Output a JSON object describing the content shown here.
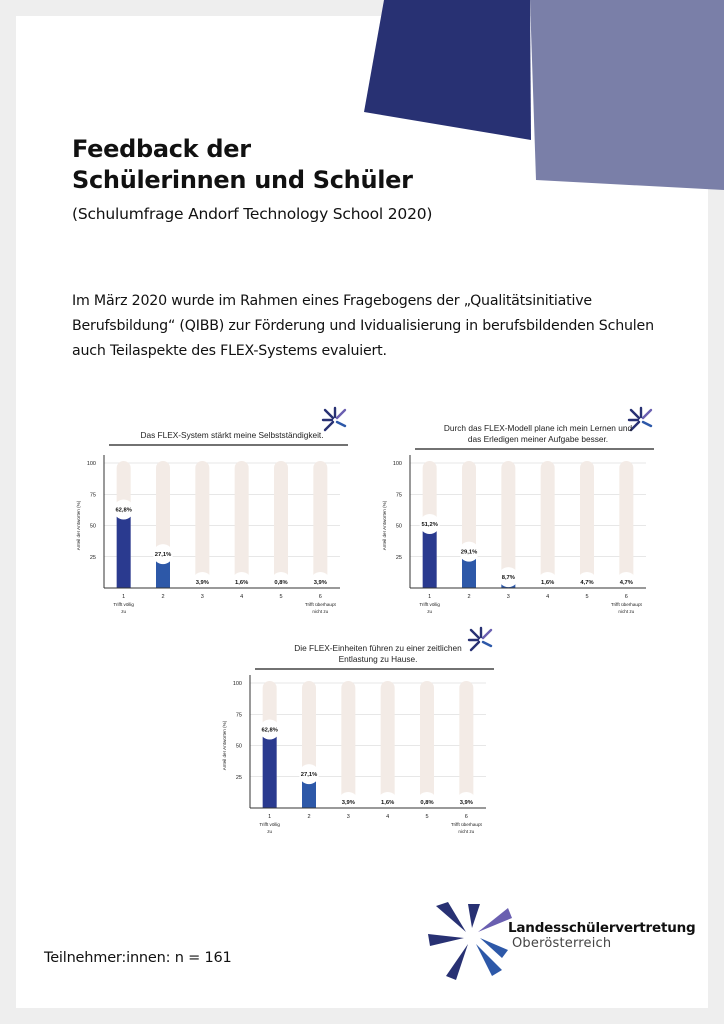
{
  "title_lines": [
    "Feedback der",
    "Schülerinnen und Schüler"
  ],
  "subtitle": "(Schulumfrage Andorf Technology School 2020)",
  "intro": "Im März 2020 wurde im Rahmen eines Fragebogens der „Qualitätsinitiative Berufsbildung“ (QIBB) zur Förderung und Ividualisierung  in berufsbildenden Schulen auch Teilaspekte des FLEX-Systems evaluiert.",
  "participants": "Teilnehmer:innen: n = 161",
  "logo": {
    "name": "Landesschülervertretung",
    "sub": "Oberösterreich"
  },
  "colors": {
    "bar_dark": "#2a3a8f",
    "bar_blue": "#2d58a8",
    "track": "#f3ebe6",
    "shape_dark": "#283173",
    "shape_light": "#7a7fa8"
  },
  "chart_data": [
    {
      "type": "bar",
      "title_lines": [
        "Das FLEX-System stärkt meine Selbstständigkeit."
      ],
      "categories": [
        "1",
        "2",
        "3",
        "4",
        "5",
        "6"
      ],
      "category_sublabels": [
        "Trifft völlig zu",
        "",
        "",
        "",
        "",
        "Trifft überhaupt nicht zu"
      ],
      "values": [
        62.8,
        27.1,
        3.9,
        1.6,
        0.8,
        3.9
      ],
      "value_labels": [
        "62,8%",
        "27,1%",
        "3,9%",
        "1,6%",
        "0,8%",
        "3,9%"
      ],
      "ylabel": "Anteil der Antworten (%)",
      "ylim": [
        0,
        100
      ],
      "yticks": [
        25,
        50,
        75,
        100
      ],
      "grid": true
    },
    {
      "type": "bar",
      "title_lines": [
        "Durch das FLEX-Modell plane ich mein Lernen und",
        "das Erledigen meiner Aufgabe besser."
      ],
      "categories": [
        "1",
        "2",
        "3",
        "4",
        "5",
        "6"
      ],
      "category_sublabels": [
        "Trifft völlig zu",
        "",
        "",
        "",
        "",
        "Trifft überhaupt nicht zu"
      ],
      "values": [
        51.2,
        29.1,
        8.7,
        1.6,
        4.7,
        4.7
      ],
      "value_labels": [
        "51,2%",
        "29,1%",
        "8,7%",
        "1,6%",
        "4,7%",
        "4,7%"
      ],
      "ylabel": "Anteil der Antworten (%)",
      "ylim": [
        0,
        100
      ],
      "yticks": [
        25,
        50,
        75,
        100
      ],
      "grid": true
    },
    {
      "type": "bar",
      "title_lines": [
        "Die FLEX-Einheiten führen zu einer zeitlichen",
        "Entlastung zu Hause."
      ],
      "categories": [
        "1",
        "2",
        "3",
        "4",
        "5",
        "6"
      ],
      "category_sublabels": [
        "Trifft völlig zu",
        "",
        "",
        "",
        "",
        "Trifft überhaupt nicht zu"
      ],
      "values": [
        62.8,
        27.1,
        3.9,
        1.6,
        0.8,
        3.9
      ],
      "value_labels": [
        "62,8%",
        "27,1%",
        "3,9%",
        "1,6%",
        "0,8%",
        "3,9%"
      ],
      "ylabel": "Anteil der Antworten (%)",
      "ylim": [
        0,
        100
      ],
      "yticks": [
        25,
        50,
        75,
        100
      ],
      "grid": true
    }
  ]
}
